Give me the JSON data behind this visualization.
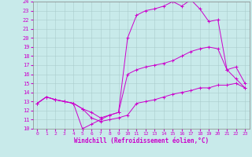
{
  "xlabel": "Windchill (Refroidissement éolien,°C)",
  "bg_color": "#c8eaea",
  "grid_color": "#aacccc",
  "line_color": "#cc00cc",
  "xlim": [
    -0.5,
    23.5
  ],
  "ylim": [
    10,
    24
  ],
  "xticks": [
    0,
    1,
    2,
    3,
    4,
    5,
    6,
    7,
    8,
    9,
    10,
    11,
    12,
    13,
    14,
    15,
    16,
    17,
    18,
    19,
    20,
    21,
    22,
    23
  ],
  "yticks": [
    10,
    11,
    12,
    13,
    14,
    15,
    16,
    17,
    18,
    19,
    20,
    21,
    22,
    23,
    24
  ],
  "series": [
    [
      12.8,
      13.5,
      13.2,
      13.0,
      12.8,
      12.2,
      11.2,
      10.8,
      11.0,
      11.2,
      11.5,
      12.8,
      13.0,
      13.2,
      13.5,
      13.8,
      14.0,
      14.2,
      14.5,
      14.5,
      14.8,
      14.8,
      15.0,
      14.5
    ],
    [
      12.8,
      13.5,
      13.2,
      13.0,
      12.8,
      12.2,
      11.8,
      11.2,
      11.5,
      11.8,
      20.0,
      22.5,
      23.0,
      23.2,
      23.5,
      24.0,
      23.5,
      24.2,
      23.2,
      21.8,
      22.0,
      16.5,
      15.5,
      14.5
    ],
    [
      12.8,
      13.5,
      13.2,
      13.0,
      12.8,
      10.0,
      10.5,
      11.0,
      11.5,
      11.8,
      16.0,
      16.5,
      16.8,
      17.0,
      17.2,
      17.5,
      18.0,
      18.5,
      18.8,
      19.0,
      18.8,
      16.5,
      16.8,
      15.0
    ]
  ]
}
